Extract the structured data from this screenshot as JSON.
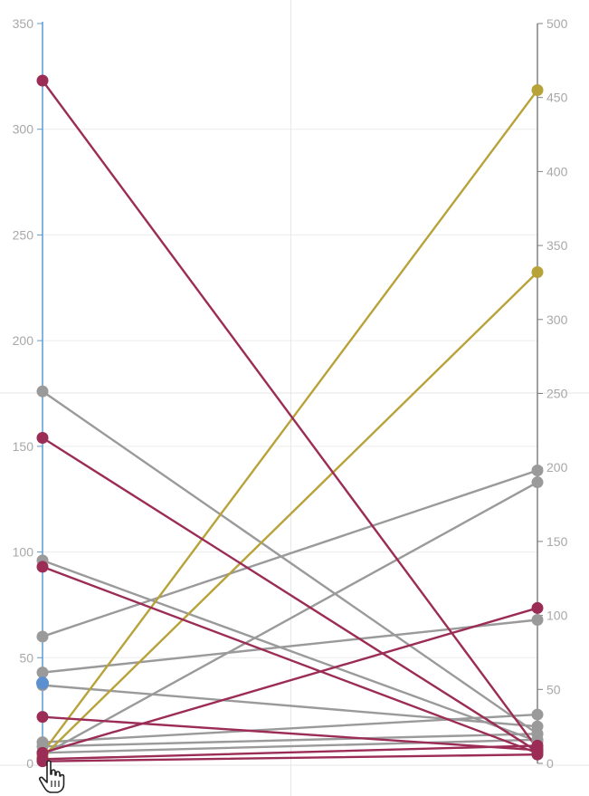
{
  "chart_data": {
    "type": "line",
    "left_axis": {
      "range": [
        0,
        350
      ],
      "ticks": [
        0,
        50,
        100,
        150,
        200,
        250,
        300,
        350
      ],
      "tick_labels": [
        "0",
        "50",
        "100",
        "150",
        "200",
        "250",
        "300",
        "350"
      ],
      "color": "#5b9bd5"
    },
    "right_axis": {
      "range": [
        0,
        500
      ],
      "ticks": [
        0,
        50,
        100,
        150,
        200,
        250,
        300,
        350,
        400,
        450,
        500
      ],
      "tick_labels": [
        "0",
        "50",
        "100",
        "150",
        "200",
        "250",
        "300",
        "350",
        "400",
        "450",
        "500"
      ],
      "color": "#808080"
    },
    "grid": true,
    "colors": {
      "maroon": "#9b2c55",
      "gold": "#b8a23a",
      "gray": "#9a9a9a",
      "blue": "#5b8fd0"
    },
    "series": [
      {
        "color": "maroon",
        "start": 323,
        "end": 10
      },
      {
        "color": "maroon",
        "start": 154,
        "end": 8
      },
      {
        "color": "maroon",
        "start": 93,
        "end": 7
      },
      {
        "color": "maroon",
        "start": 22,
        "end": 9
      },
      {
        "color": "maroon",
        "start": 5,
        "end": 105
      },
      {
        "color": "maroon",
        "start": 2,
        "end": 12
      },
      {
        "color": "maroon",
        "start": 1,
        "end": 6
      },
      {
        "color": "gold",
        "start": 5,
        "end": 455
      },
      {
        "color": "gold",
        "start": 3,
        "end": 332
      },
      {
        "color": "gray",
        "start": 176,
        "end": 20
      },
      {
        "color": "gray",
        "start": 96,
        "end": 15
      },
      {
        "color": "gray",
        "start": 60,
        "end": 198
      },
      {
        "color": "gray",
        "start": 43,
        "end": 97
      },
      {
        "color": "gray",
        "start": 37,
        "end": 25
      },
      {
        "color": "gray",
        "start": 10,
        "end": 33
      },
      {
        "color": "gray",
        "start": 8,
        "end": 20
      },
      {
        "color": "gray",
        "start": 5,
        "end": 16
      },
      {
        "color": "gray",
        "start": 4,
        "end": 190
      }
    ],
    "start_markers": [
      {
        "color": "blue",
        "value": 38
      }
    ]
  },
  "icons": {
    "cursor": "hand-pointer-icon"
  }
}
